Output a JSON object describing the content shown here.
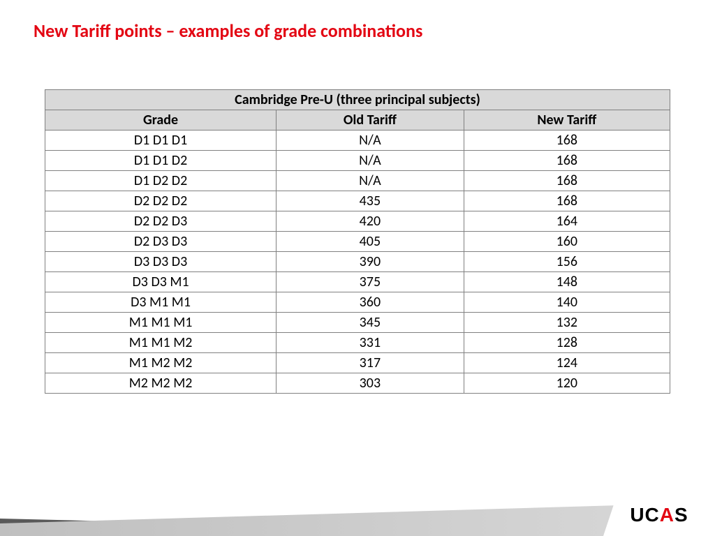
{
  "title": "New Tariff points – examples of grade combinations",
  "table": {
    "caption": "Cambridge Pre-U (three principal subjects)",
    "columns": [
      "Grade",
      "Old Tariff",
      "New Tariff"
    ],
    "col_widths_pct": [
      37,
      30,
      33
    ],
    "header_bg": "#d9d9d9",
    "border_color": "#808080",
    "font_size_pt": 20,
    "rows": [
      [
        "D1 D1 D1",
        "N/A",
        "168"
      ],
      [
        "D1 D1 D2",
        "N/A",
        "168"
      ],
      [
        "D1 D2 D2",
        "N/A",
        "168"
      ],
      [
        "D2 D2 D2",
        "435",
        "168"
      ],
      [
        "D2 D2 D3",
        "420",
        "164"
      ],
      [
        "D2 D3 D3",
        "405",
        "160"
      ],
      [
        "D3 D3 D3",
        "390",
        "156"
      ],
      [
        "D3 D3 M1",
        "375",
        "148"
      ],
      [
        "D3 M1 M1",
        "360",
        "140"
      ],
      [
        "M1 M1 M1",
        "345",
        "132"
      ],
      [
        "M1 M1 M2",
        "331",
        "128"
      ],
      [
        "M1 M2 M2",
        "317",
        "124"
      ],
      [
        "M2 M2 M2",
        "303",
        "120"
      ]
    ]
  },
  "logo": {
    "pre": "UC",
    "accent": "A",
    "post": "S"
  },
  "colors": {
    "title": "#e30613",
    "accent": "#e30613",
    "footer_dark": "#595959",
    "footer_light_from": "#bfbfbf",
    "footer_light_to": "#d9d9d9",
    "background": "#ffffff"
  }
}
